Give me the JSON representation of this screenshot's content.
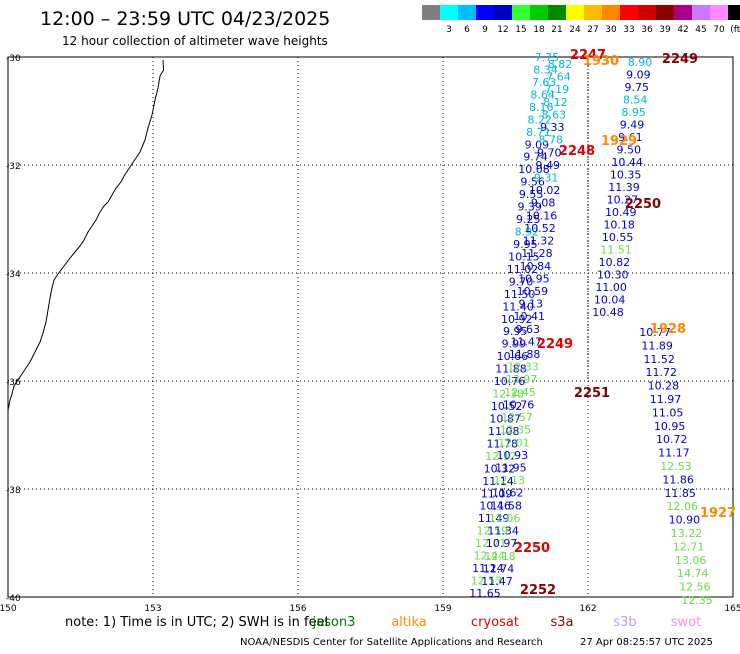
{
  "title": "12:00 – 23:59 UTC 04/23/2025",
  "subtitle": "12 hour collection of altimeter wave heights",
  "colorbar": {
    "colors": [
      "#7f7f7f",
      "#00ffff",
      "#00bfff",
      "#0000ff",
      "#0000bf",
      "#33ff33",
      "#00cc00",
      "#008800",
      "#ffff00",
      "#ffbb00",
      "#ff8800",
      "#ff0000",
      "#cc0000",
      "#880000",
      "#aa0088",
      "#cc77ff",
      "#ff88ff",
      "#000000"
    ],
    "labels": [
      "3",
      "6",
      "9",
      "12",
      "15",
      "18",
      "21",
      "24",
      "27",
      "30",
      "33",
      "36",
      "39",
      "42",
      "45",
      "70"
    ],
    "unit": "(ft)"
  },
  "axes": {
    "lon_ticks": [
      "150",
      "153",
      "156",
      "159",
      "162",
      "165"
    ],
    "lat_ticks": [
      "-30",
      "-32",
      "-34",
      "-36",
      "-38",
      "-40"
    ],
    "lon_range": [
      150,
      165
    ],
    "lat_range": [
      -40,
      -30
    ]
  },
  "colors": {
    "c_cyan": "#00b8d8",
    "c_blue": "#0000c8",
    "c_green": "#66dd44",
    "c_red": "#dd0000",
    "c_dred": "#880000",
    "c_orange": "#ff8800"
  },
  "tracks": {
    "track_a": {
      "heights": [
        "7.75",
        "8.34",
        "7.63",
        "8.64",
        "8.16",
        "8.22",
        "8.71",
        "9.09",
        "9.74",
        "10.08",
        "9.56",
        "9.55",
        "9.39",
        "9.25",
        "8.92",
        "9.95",
        "10.15",
        "11.02",
        "9.70",
        "11.50",
        "11.40",
        "10.92",
        "9.95",
        "9.99",
        "10.66",
        "11.88",
        "10.76",
        "12.38",
        "10.52",
        "10.87",
        "11.08",
        "11.78",
        "12.12",
        "10.32",
        "11.14",
        "11.09",
        "10.46",
        "11.49",
        "12.59",
        "12.71",
        "12.44",
        "11.24",
        "12.53",
        "11.65"
      ],
      "colors": [
        "c_cyan",
        "c_cyan",
        "c_cyan",
        "c_cyan",
        "c_cyan",
        "c_cyan",
        "c_cyan",
        "c_blue",
        "c_blue",
        "c_blue",
        "c_blue",
        "c_blue",
        "c_blue",
        "c_blue",
        "c_cyan",
        "c_blue",
        "c_blue",
        "c_blue",
        "c_blue",
        "c_blue",
        "c_blue",
        "c_blue",
        "c_blue",
        "c_blue",
        "c_blue",
        "c_blue",
        "c_blue",
        "c_green",
        "c_blue",
        "c_blue",
        "c_blue",
        "c_blue",
        "c_green",
        "c_blue",
        "c_blue",
        "c_blue",
        "c_blue",
        "c_blue",
        "c_green",
        "c_green",
        "c_green",
        "c_blue",
        "c_green",
        "c_blue"
      ]
    },
    "track_b": {
      "heights": [
        "8.82",
        "7.64",
        "7.19",
        "8.12",
        "8.63",
        "9.33",
        "8.78",
        "9.70",
        "9.49",
        "9.31",
        "10.02",
        "9.08",
        "10.16",
        "10.52",
        "11.32",
        "11.28",
        "10.84",
        "10.95",
        "10.59",
        "9.13",
        "10.41",
        "9.63",
        "11.47",
        "11.88",
        "12.33",
        "13.97",
        "12.45",
        "10.76",
        "12.57",
        "12.35",
        "12.01",
        "10.93",
        "11.95",
        "12.13",
        "11.62",
        "11.58",
        "12.06",
        "11.34",
        "10.97",
        "12.18",
        "11.74",
        "11.47"
      ],
      "colors": [
        "c_cyan",
        "c_cyan",
        "c_cyan",
        "c_cyan",
        "c_cyan",
        "c_blue",
        "c_cyan",
        "c_blue",
        "c_blue",
        "c_cyan",
        "c_blue",
        "c_blue",
        "c_blue",
        "c_blue",
        "c_blue",
        "c_blue",
        "c_blue",
        "c_blue",
        "c_blue",
        "c_blue",
        "c_blue",
        "c_blue",
        "c_blue",
        "c_blue",
        "c_green",
        "c_green",
        "c_green",
        "c_blue",
        "c_green",
        "c_green",
        "c_green",
        "c_blue",
        "c_blue",
        "c_green",
        "c_blue",
        "c_blue",
        "c_green",
        "c_blue",
        "c_blue",
        "c_green",
        "c_blue",
        "c_blue"
      ]
    },
    "track_c": {
      "heights": [
        "8.90",
        "9.09",
        "9.75",
        "8.54",
        "8.95",
        "9.49",
        "9.61",
        "9.50",
        "10.44",
        "10.35",
        "11.39",
        "10.27",
        "10.49",
        "10.18",
        "10.55",
        "11.51",
        "10.82",
        "10.30",
        "11.00",
        "10.04",
        "10.48"
      ],
      "colors": [
        "c_cyan",
        "c_blue",
        "c_blue",
        "c_cyan",
        "c_cyan",
        "c_blue",
        "c_blue",
        "c_blue",
        "c_blue",
        "c_blue",
        "c_blue",
        "c_blue",
        "c_blue",
        "c_blue",
        "c_blue",
        "c_green",
        "c_blue",
        "c_blue",
        "c_blue",
        "c_blue",
        "c_blue"
      ]
    },
    "track_d": {
      "heights": [
        "10.77",
        "11.89",
        "11.52",
        "11.72",
        "10.28",
        "11.97",
        "11.05",
        "10.95",
        "10.72",
        "11.17",
        "12.53",
        "11.86",
        "11.85",
        "12.06",
        "10.90",
        "13.22",
        "12.71",
        "13.06",
        "14.74",
        "12.56",
        "12.35"
      ],
      "colors": [
        "c_blue",
        "c_blue",
        "c_blue",
        "c_blue",
        "c_blue",
        "c_blue",
        "c_blue",
        "c_blue",
        "c_blue",
        "c_blue",
        "c_green",
        "c_blue",
        "c_blue",
        "c_green",
        "c_blue",
        "c_green",
        "c_green",
        "c_green",
        "c_green",
        "c_green",
        "c_green"
      ]
    }
  },
  "time_labels": [
    {
      "text": "2247",
      "color": "c_red"
    },
    {
      "text": "1930",
      "color": "c_orange"
    },
    {
      "text": "2249",
      "color": "c_dred"
    },
    {
      "text": "1929",
      "color": "c_orange"
    },
    {
      "text": "2248",
      "color": "c_red"
    },
    {
      "text": "2250",
      "color": "c_dred"
    },
    {
      "text": "1928",
      "color": "c_orange"
    },
    {
      "text": "2249",
      "color": "c_red"
    },
    {
      "text": "2251",
      "color": "c_dred"
    },
    {
      "text": "1927",
      "color": "c_orange"
    },
    {
      "text": "2250",
      "color": "c_red"
    },
    {
      "text": "2252",
      "color": "c_dred"
    }
  ],
  "footer": {
    "note": "note:  1) Time is in UTC; 2) SWH is in feet",
    "missions": [
      {
        "name": "jason3",
        "color": "#007700"
      },
      {
        "name": "altika",
        "color": "#ff8800"
      },
      {
        "name": "cryosat",
        "color": "#dd0000"
      },
      {
        "name": "s3a",
        "color": "#880000"
      },
      {
        "name": "s3b",
        "color": "#bb99ff"
      },
      {
        "name": "swot",
        "color": "#ff88ff"
      }
    ],
    "credit": "NOAA/NESDIS Center for Satellite Applications and Research",
    "timestamp": "27 Apr 08:25:57 UTC 2025"
  }
}
